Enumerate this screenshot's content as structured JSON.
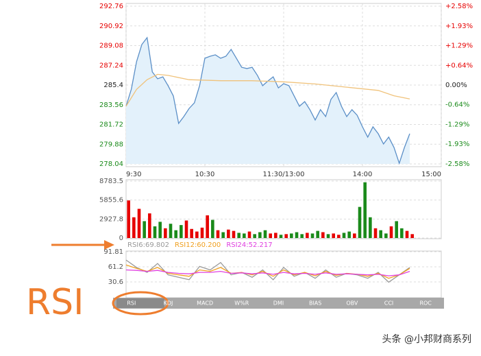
{
  "chart_data": [
    {
      "type": "line",
      "xlim": [
        0,
        240
      ],
      "xticks": [
        {
          "value": 0,
          "label": "9:30"
        },
        {
          "value": 60,
          "label": "10:30"
        },
        {
          "value": 120,
          "label": "11:30/13:00"
        },
        {
          "value": 180,
          "label": "14:00"
        },
        {
          "value": 240,
          "label": "15:00"
        }
      ],
      "ylim": [
        278.04,
        292.76
      ],
      "yticks": [
        278.04,
        279.88,
        281.72,
        283.56,
        285.4,
        287.24,
        289.08,
        290.92,
        292.76
      ],
      "y2lim": [
        -2.58,
        2.58
      ],
      "y2ticks": [
        {
          "value": -2.58,
          "label": "-2.58%"
        },
        {
          "value": -1.93,
          "label": "-1.93%"
        },
        {
          "value": -1.29,
          "label": "-1.29%"
        },
        {
          "value": -0.64,
          "label": "-0.64%"
        },
        {
          "value": 0,
          "label": "0.00%"
        },
        {
          "value": 0.64,
          "label": "+0.64%"
        },
        {
          "value": 1.29,
          "label": "+1.29%"
        },
        {
          "value": 1.93,
          "label": "+1.93%"
        },
        {
          "value": 2.58,
          "label": "+2.58%"
        }
      ],
      "grid": true,
      "series": [
        {
          "color": "#5b8fc7",
          "area": true,
          "x": [
            0,
            4,
            8,
            12,
            16,
            20,
            24,
            28,
            32,
            36,
            40,
            44,
            48,
            52,
            56,
            60,
            64,
            68,
            72,
            76,
            80,
            84,
            88,
            92,
            96,
            100,
            104,
            108,
            112,
            116,
            120,
            124,
            128,
            132,
            136,
            140,
            144,
            148,
            152,
            156,
            160,
            164,
            168,
            172,
            176,
            180,
            184,
            188,
            192,
            196,
            200,
            204,
            208,
            212,
            216
          ],
          "values": [
            283.42,
            285.02,
            287.58,
            289.18,
            289.82,
            286.62,
            285.98,
            286.17,
            285.34,
            284.38,
            281.82,
            282.46,
            283.22,
            283.74,
            285.34,
            287.9,
            288.09,
            288.22,
            287.9,
            288.09,
            288.73,
            287.9,
            287.06,
            286.94,
            287.06,
            286.3,
            285.34,
            285.78,
            286.17,
            285.14,
            285.53,
            285.34,
            284.38,
            283.42,
            283.86,
            283.1,
            282.14,
            283.1,
            282.46,
            284.06,
            284.7,
            283.42,
            282.46,
            283.1,
            282.58,
            281.5,
            280.54,
            281.5,
            280.86,
            279.9,
            280.54,
            279.58,
            278.1,
            279.58,
            280.86
          ]
        },
        {
          "color": "#f0c27a",
          "x": [
            0,
            8,
            16,
            24,
            32,
            48,
            72,
            96,
            120,
            144,
            168,
            192,
            204,
            216
          ],
          "values": [
            283.42,
            285.0,
            285.9,
            286.4,
            286.3,
            285.9,
            285.8,
            285.8,
            285.7,
            285.5,
            285.2,
            284.9,
            284.4,
            284.1
          ]
        }
      ]
    },
    {
      "type": "bar",
      "xlim": [
        0,
        240
      ],
      "ylim": [
        0,
        8783.5
      ],
      "yticks": [
        0,
        2927.8,
        5855.6,
        8783.5
      ],
      "grid": true,
      "x": [
        0,
        4,
        8,
        12,
        16,
        20,
        24,
        28,
        32,
        36,
        40,
        44,
        48,
        52,
        56,
        60,
        64,
        68,
        72,
        76,
        80,
        84,
        88,
        92,
        96,
        100,
        104,
        108,
        112,
        116,
        120,
        124,
        128,
        132,
        136,
        140,
        144,
        148,
        152,
        156,
        160,
        164,
        168,
        172,
        176,
        180,
        184,
        188,
        192,
        196,
        200,
        204,
        208,
        212,
        216
      ],
      "values": [
        5800,
        3200,
        4500,
        2600,
        3800,
        1800,
        2500,
        1500,
        2200,
        1200,
        2000,
        2700,
        1400,
        1000,
        1600,
        3500,
        2800,
        1200,
        900,
        1300,
        1100,
        800,
        700,
        1000,
        600,
        900,
        1200,
        700,
        800,
        500,
        600,
        700,
        900,
        600,
        800,
        700,
        1100,
        900,
        600,
        700,
        500,
        800,
        1000,
        700,
        4800,
        8600,
        3200,
        1500,
        1200,
        700,
        1800,
        2600,
        1500,
        1100,
        600
      ],
      "colors": [
        "#e60000",
        "#e60000",
        "#e60000",
        "#1a8a1a",
        "#e60000",
        "#1a8a1a",
        "#1a8a1a",
        "#e60000",
        "#1a8a1a",
        "#1a8a1a",
        "#1a8a1a",
        "#e60000",
        "#e60000",
        "#e60000",
        "#e60000",
        "#e60000",
        "#1a8a1a",
        "#e60000",
        "#1a8a1a",
        "#e60000",
        "#e60000",
        "#1a8a1a",
        "#1a8a1a",
        "#e60000",
        "#1a8a1a",
        "#1a8a1a",
        "#1a8a1a",
        "#e60000",
        "#e60000",
        "#1a8a1a",
        "#e60000",
        "#1a8a1a",
        "#1a8a1a",
        "#1a8a1a",
        "#e60000",
        "#1a8a1a",
        "#1a8a1a",
        "#e60000",
        "#1a8a1a",
        "#e60000",
        "#e60000",
        "#1a8a1a",
        "#1a8a1a",
        "#e60000",
        "#1a8a1a",
        "#1a8a1a",
        "#1a8a1a",
        "#e60000",
        "#1a8a1a",
        "#1a8a1a",
        "#e60000",
        "#1a8a1a",
        "#1a8a1a",
        "#e60000",
        "#e60000"
      ]
    },
    {
      "type": "line",
      "xlim": [
        0,
        240
      ],
      "ylim": [
        0,
        91.81
      ],
      "yticks": [
        30.6,
        61.2,
        91.81
      ],
      "grid": true,
      "legend": "top-left",
      "x": [
        0,
        8,
        16,
        24,
        32,
        40,
        48,
        56,
        64,
        72,
        80,
        88,
        96,
        104,
        112,
        120,
        128,
        136,
        144,
        152,
        160,
        168,
        176,
        184,
        192,
        200,
        208,
        216
      ],
      "series": [
        {
          "name": "RSI6:69.802",
          "color": "#999999",
          "values": [
            75,
            60,
            50,
            68,
            45,
            40,
            35,
            62,
            55,
            70,
            45,
            50,
            40,
            55,
            35,
            60,
            42,
            50,
            38,
            55,
            40,
            48,
            45,
            38,
            50,
            30,
            45,
            60
          ]
        },
        {
          "name": "RSI12:60.200",
          "color": "#f0a020",
          "values": [
            65,
            58,
            52,
            60,
            48,
            45,
            42,
            55,
            52,
            60,
            48,
            50,
            45,
            52,
            42,
            55,
            45,
            50,
            43,
            52,
            44,
            48,
            46,
            42,
            48,
            38,
            45,
            58
          ]
        },
        {
          "name": "RSI24:52.217",
          "color": "#e040e0",
          "values": [
            55,
            54,
            52,
            54,
            50,
            48,
            47,
            50,
            50,
            52,
            48,
            49,
            47,
            49,
            46,
            50,
            47,
            48,
            46,
            49,
            46,
            47,
            46,
            45,
            46,
            43,
            45,
            52
          ]
        }
      ]
    }
  ],
  "tabs": [
    "RSI",
    "KDJ",
    "MACD",
    "W%R",
    "DMI",
    "BIAS",
    "OBV",
    "CCI",
    "ROC"
  ],
  "annotation": "RSI",
  "watermark": "头条 @小邦财商系列"
}
